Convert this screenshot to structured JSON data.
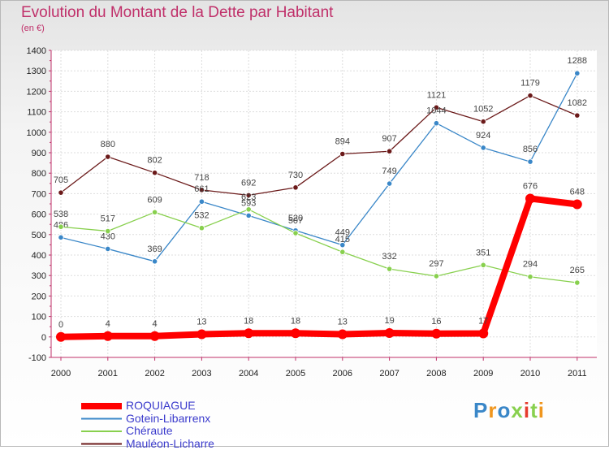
{
  "chart_data": {
    "type": "line",
    "title": "Evolution du Montant de la Dette par Habitant",
    "subtitle": "(en €)",
    "categories": [
      "2000",
      "2001",
      "2002",
      "2003",
      "2004",
      "2005",
      "2006",
      "2007",
      "2008",
      "2009",
      "2010",
      "2011"
    ],
    "ylim": [
      -100,
      1400
    ],
    "ytick_step": 100,
    "grid": true,
    "legend_position": "bottom-left",
    "series": [
      {
        "name": "Mauléon-Licharre",
        "color": "#6b1a1a",
        "values": [
          705,
          880,
          802,
          718,
          692,
          730,
          894,
          907,
          1121,
          1052,
          1179,
          1082
        ],
        "labels": [
          "705",
          "880",
          "802",
          "718",
          "692",
          "730",
          "894",
          "907",
          "1121",
          "1052",
          "1179",
          "1082"
        ]
      },
      {
        "name": "Gotein-Libarrenx",
        "color": "#3a87c8",
        "values": [
          486,
          430,
          369,
          661,
          593,
          520,
          449,
          749,
          1044,
          924,
          856,
          1288
        ],
        "labels": [
          "486",
          "430",
          "369",
          "661",
          "593",
          "520",
          "449",
          "749",
          "1044",
          "924",
          "856",
          "1288"
        ]
      },
      {
        "name": "Chéraute",
        "color": "#88d04e",
        "values": [
          538,
          517,
          609,
          532,
          623,
          507,
          415,
          332,
          297,
          351,
          294,
          265
        ],
        "labels": [
          "538",
          "517",
          "609",
          "532",
          "623",
          "507",
          "415",
          "332",
          "297",
          "351",
          "294",
          "265"
        ]
      },
      {
        "name": "ROQUIAGUE",
        "color": "#ff0000",
        "values": [
          0,
          4,
          4,
          13,
          18,
          18,
          13,
          19,
          16,
          17,
          676,
          648
        ],
        "labels": [
          "0",
          "4",
          "4",
          "13",
          "18",
          "18",
          "13",
          "19",
          "16",
          "17",
          "676",
          "648"
        ]
      }
    ]
  },
  "legend": {
    "items": [
      {
        "name": "ROQUIAGUE",
        "color": "#ff0000"
      },
      {
        "name": "Gotein-Libarrenx",
        "color": "#3a87c8"
      },
      {
        "name": "Chéraute",
        "color": "#88d04e"
      },
      {
        "name": "Mauléon-Licharre",
        "color": "#6b1a1a"
      }
    ]
  },
  "logo": {
    "text": "Proxiti"
  }
}
